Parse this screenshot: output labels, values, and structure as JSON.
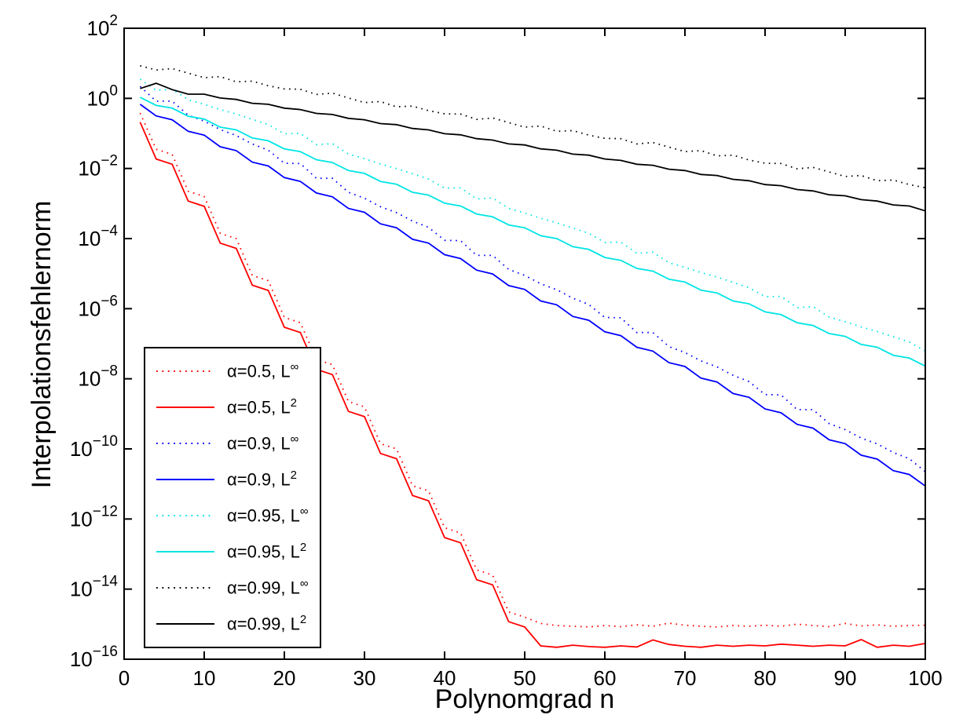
{
  "figure": {
    "background": "#ffffff",
    "frame_color": "#000000"
  },
  "chart_data": {
    "type": "line",
    "title": "",
    "xlabel": "Polynomgrad n",
    "ylabel": "Interpolationsfehlernorm",
    "x_axis": {
      "min": 0,
      "max": 100,
      "ticks": [
        0,
        10,
        20,
        30,
        40,
        50,
        60,
        70,
        80,
        90,
        100
      ]
    },
    "y_axis": {
      "scale": "log10",
      "max_exp": 2,
      "min_exp": -16,
      "tick_exponents": [
        2,
        0,
        -2,
        -4,
        -6,
        -8,
        -10,
        -12,
        -14,
        -16
      ]
    },
    "grid": false,
    "legend_position": "lower-left",
    "values_are": "log10 of interpolation error norm",
    "n": [
      2,
      4,
      6,
      8,
      10,
      12,
      14,
      16,
      18,
      20,
      22,
      24,
      26,
      28,
      30,
      32,
      34,
      36,
      38,
      40,
      42,
      44,
      46,
      48,
      50,
      52,
      54,
      56,
      58,
      60,
      62,
      64,
      66,
      68,
      70,
      72,
      74,
      76,
      78,
      80,
      82,
      84,
      86,
      88,
      90,
      92,
      94,
      96,
      98,
      100
    ],
    "series": [
      {
        "name": "alpha=0.5, L-infinity",
        "label_base": "α=0.5, L",
        "label_sup": "∞",
        "color": "#ff0000",
        "style": "dotted",
        "log10_values": [
          -0.42,
          -1.45,
          -1.6,
          -2.65,
          -2.8,
          -3.85,
          -4.0,
          -5.05,
          -5.2,
          -6.25,
          -6.4,
          -7.45,
          -7.6,
          -8.65,
          -8.8,
          -9.85,
          -10.0,
          -11.05,
          -11.2,
          -12.25,
          -12.4,
          -13.45,
          -13.6,
          -14.65,
          -14.8,
          -14.98,
          -15.04,
          -15.06,
          -15.08,
          -15.04,
          -15.07,
          -15.02,
          -15.06,
          -14.97,
          -15.03,
          -15.06,
          -15.08,
          -15.04,
          -15.06,
          -15.03,
          -15.06,
          -15.0,
          -15.04,
          -15.07,
          -14.98,
          -15.05,
          -15.02,
          -15.06,
          -15.04,
          -15.03
        ]
      },
      {
        "name": "alpha=0.5, L2",
        "label_base": "α=0.5, L",
        "label_sup": "2",
        "color": "#ff0000",
        "style": "solid",
        "log10_values": [
          -0.68,
          -1.73,
          -1.88,
          -2.93,
          -3.08,
          -4.13,
          -4.28,
          -5.33,
          -5.48,
          -6.53,
          -6.68,
          -7.73,
          -7.88,
          -8.93,
          -9.08,
          -10.13,
          -10.28,
          -11.33,
          -11.48,
          -12.53,
          -12.68,
          -13.73,
          -13.88,
          -14.93,
          -15.08,
          -15.62,
          -15.66,
          -15.6,
          -15.64,
          -15.66,
          -15.62,
          -15.65,
          -15.45,
          -15.58,
          -15.63,
          -15.66,
          -15.6,
          -15.63,
          -15.6,
          -15.62,
          -15.57,
          -15.6,
          -15.63,
          -15.6,
          -15.62,
          -15.44,
          -15.66,
          -15.6,
          -15.63,
          -15.55
        ]
      },
      {
        "name": "alpha=0.9, L-infinity",
        "label_base": "α=0.9, L",
        "label_sup": "∞",
        "color": "#0000ff",
        "style": "dotted",
        "log10_values": [
          0.34,
          -0.08,
          -0.08,
          -0.48,
          -0.65,
          -0.89,
          -1.06,
          -1.3,
          -1.48,
          -1.85,
          -1.86,
          -2.28,
          -2.28,
          -2.68,
          -2.85,
          -3.09,
          -3.26,
          -3.5,
          -3.68,
          -4.05,
          -4.06,
          -4.48,
          -4.48,
          -4.88,
          -5.05,
          -5.29,
          -5.46,
          -5.7,
          -5.88,
          -6.25,
          -6.26,
          -6.68,
          -6.68,
          -7.08,
          -7.25,
          -7.49,
          -7.66,
          -7.9,
          -8.08,
          -8.45,
          -8.46,
          -8.88,
          -8.88,
          -9.28,
          -9.45,
          -9.69,
          -9.86,
          -10.1,
          -10.28,
          -10.65
        ]
      },
      {
        "name": "alpha=0.9, L2",
        "label_base": "α=0.9, L",
        "label_sup": "2",
        "color": "#0000ff",
        "style": "solid",
        "log10_values": [
          -0.17,
          -0.5,
          -0.61,
          -0.94,
          -1.05,
          -1.38,
          -1.49,
          -1.82,
          -1.93,
          -2.26,
          -2.37,
          -2.7,
          -2.81,
          -3.14,
          -3.25,
          -3.58,
          -3.69,
          -4.02,
          -4.13,
          -4.46,
          -4.57,
          -4.9,
          -5.01,
          -5.34,
          -5.45,
          -5.78,
          -5.89,
          -6.22,
          -6.33,
          -6.66,
          -6.77,
          -7.1,
          -7.21,
          -7.54,
          -7.65,
          -7.98,
          -8.09,
          -8.42,
          -8.53,
          -8.86,
          -8.97,
          -9.3,
          -9.41,
          -9.74,
          -9.85,
          -10.18,
          -10.29,
          -10.62,
          -10.73,
          -11.06
        ]
      },
      {
        "name": "alpha=0.95, L-infinity",
        "label_base": "α=0.95, L",
        "label_sup": "∞",
        "color": "#00e5e5",
        "style": "dotted",
        "log10_values": [
          0.55,
          0.23,
          0.26,
          -0.04,
          -0.17,
          -0.32,
          -0.45,
          -0.6,
          -0.75,
          -1.01,
          -1.0,
          -1.32,
          -1.29,
          -1.59,
          -1.72,
          -1.87,
          -2.0,
          -2.15,
          -2.3,
          -2.56,
          -2.55,
          -2.87,
          -2.84,
          -3.14,
          -3.27,
          -3.42,
          -3.55,
          -3.7,
          -3.85,
          -4.11,
          -4.1,
          -4.42,
          -4.39,
          -4.69,
          -4.82,
          -4.97,
          -5.1,
          -5.25,
          -5.4,
          -5.66,
          -5.65,
          -5.97,
          -5.94,
          -6.24,
          -6.37,
          -6.52,
          -6.65,
          -6.8,
          -6.95,
          -7.21
        ]
      },
      {
        "name": "alpha=0.95, L2",
        "label_base": "α=0.95, L",
        "label_sup": "2",
        "color": "#00e5e5",
        "style": "solid",
        "log10_values": [
          0.03,
          -0.2,
          -0.28,
          -0.51,
          -0.59,
          -0.82,
          -0.9,
          -1.13,
          -1.21,
          -1.44,
          -1.52,
          -1.75,
          -1.83,
          -2.06,
          -2.14,
          -2.37,
          -2.45,
          -2.68,
          -2.76,
          -2.99,
          -3.07,
          -3.3,
          -3.38,
          -3.61,
          -3.69,
          -3.92,
          -4.0,
          -4.23,
          -4.31,
          -4.54,
          -4.62,
          -4.85,
          -4.93,
          -5.16,
          -5.24,
          -5.47,
          -5.55,
          -5.78,
          -5.86,
          -6.09,
          -6.17,
          -6.4,
          -6.48,
          -6.71,
          -6.79,
          -7.02,
          -7.1,
          -7.33,
          -7.41,
          -7.64
        ]
      },
      {
        "name": "alpha=0.99, L-infinity",
        "label_base": "α=0.99, L",
        "label_sup": "∞",
        "color": "#000000",
        "style": "dotted",
        "log10_values": [
          0.93,
          0.81,
          0.85,
          0.72,
          0.59,
          0.62,
          0.47,
          0.49,
          0.36,
          0.27,
          0.26,
          0.11,
          0.15,
          0.01,
          -0.12,
          -0.09,
          -0.24,
          -0.22,
          -0.35,
          -0.44,
          -0.45,
          -0.6,
          -0.56,
          -0.69,
          -0.82,
          -0.79,
          -0.94,
          -0.92,
          -1.05,
          -1.14,
          -1.15,
          -1.3,
          -1.26,
          -1.39,
          -1.52,
          -1.49,
          -1.64,
          -1.62,
          -1.76,
          -1.85,
          -1.86,
          -2.01,
          -1.97,
          -2.1,
          -2.23,
          -2.2,
          -2.35,
          -2.33,
          -2.46,
          -2.55
        ]
      },
      {
        "name": "alpha=0.99, L2",
        "label_base": "α=0.99, L",
        "label_sup": "2",
        "color": "#000000",
        "style": "solid",
        "log10_values": [
          0.28,
          0.43,
          0.25,
          0.12,
          0.12,
          0.01,
          -0.03,
          -0.14,
          -0.17,
          -0.28,
          -0.32,
          -0.43,
          -0.46,
          -0.57,
          -0.61,
          -0.72,
          -0.75,
          -0.86,
          -0.9,
          -1.01,
          -1.04,
          -1.15,
          -1.19,
          -1.3,
          -1.33,
          -1.44,
          -1.48,
          -1.59,
          -1.62,
          -1.73,
          -1.77,
          -1.88,
          -1.91,
          -2.02,
          -2.06,
          -2.17,
          -2.2,
          -2.31,
          -2.35,
          -2.46,
          -2.49,
          -2.6,
          -2.64,
          -2.75,
          -2.78,
          -2.89,
          -2.93,
          -3.04,
          -3.07,
          -3.21
        ]
      }
    ]
  }
}
